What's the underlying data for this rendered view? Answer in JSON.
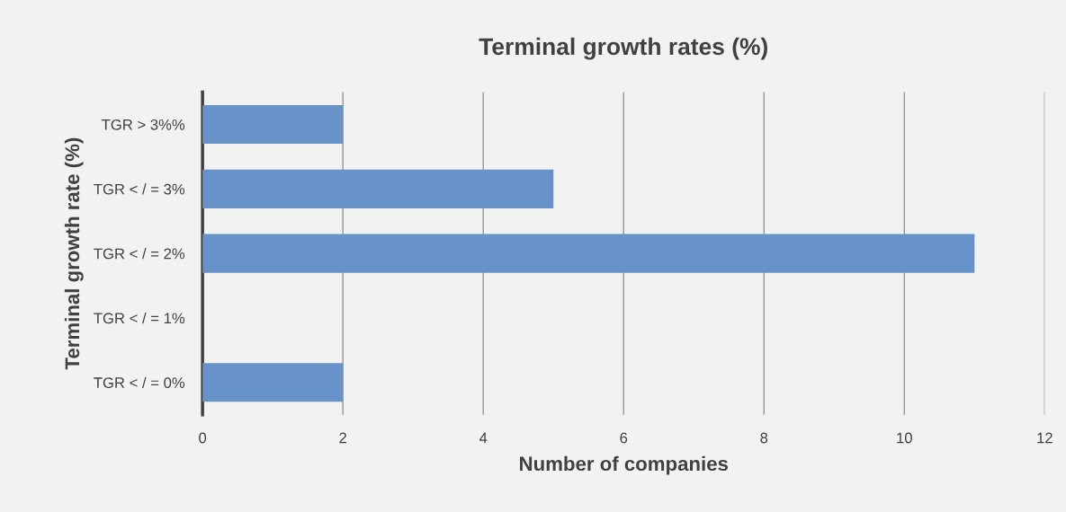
{
  "chart_data": {
    "type": "bar",
    "orientation": "horizontal",
    "title": "Terminal growth rates (%)",
    "xlabel": "Number of companies",
    "ylabel": "Terminal growth rate (%)",
    "categories": [
      "TGR > 3%%",
      "TGR < / = 3%",
      "TGR < / = 2%",
      "TGR < / = 1%",
      "TGR < / = 0%"
    ],
    "values": [
      2,
      5,
      11,
      0,
      2
    ],
    "color": "#6793c8",
    "xlim": [
      0,
      12
    ],
    "xticks": [
      0,
      2,
      4,
      6,
      8,
      10,
      12
    ],
    "grid": "x",
    "legend": false
  }
}
